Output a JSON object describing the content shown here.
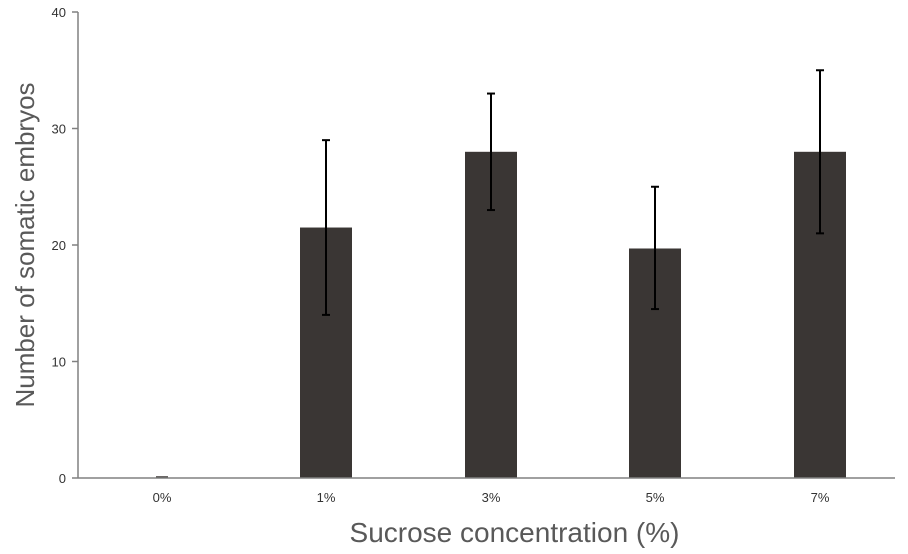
{
  "chart_data": {
    "type": "bar",
    "title": "",
    "xlabel": "Sucrose concentration (%)",
    "ylabel": "Number of  somatic embryos",
    "categories": [
      "0%",
      "1%",
      "3%",
      "5%",
      "7%"
    ],
    "values": [
      0,
      21.5,
      28,
      19.7,
      28
    ],
    "error_low": [
      0,
      14,
      23,
      14.5,
      21
    ],
    "error_high": [
      0,
      29,
      33,
      25,
      35
    ],
    "ylim": [
      0,
      40
    ],
    "yticks": [
      "0",
      "10",
      "20",
      "30",
      "40"
    ],
    "grid": false,
    "legend": "none",
    "bar_color": "#3a3634",
    "error_color": "#000000",
    "axis_color": "#808080"
  }
}
